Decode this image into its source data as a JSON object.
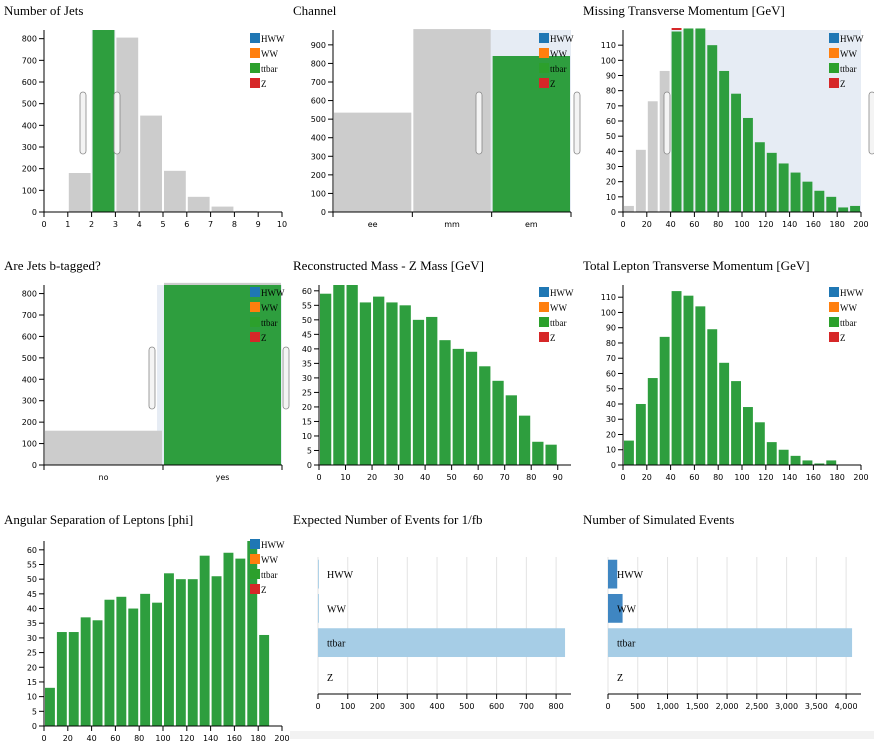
{
  "colors": {
    "HWW": "#1f77b4",
    "WW": "#ff7f0e",
    "ttbar": "#2ca02c",
    "Z": "#d62728",
    "bar": "#2e9e3e",
    "background": "#cccccc",
    "selection": "#e6ecf4",
    "hbar_light": "#a6cde6",
    "hbar_dark": "#3f86c2"
  },
  "legend": [
    "HWW",
    "WW",
    "ttbar",
    "Z"
  ],
  "chart_data": [
    {
      "id": "njets",
      "type": "bar",
      "title": "Number of Jets",
      "xlim": [
        0,
        10
      ],
      "ylim": [
        0,
        840
      ],
      "xticks": [
        0,
        1,
        2,
        3,
        4,
        5,
        6,
        7,
        8,
        9,
        10
      ],
      "yticks": [
        0,
        100,
        200,
        300,
        400,
        500,
        600,
        700,
        800
      ],
      "background": {
        "bins": [
          [
            1,
            2,
            180
          ],
          [
            2,
            3,
            840
          ],
          [
            3,
            4,
            805
          ],
          [
            4,
            5,
            445
          ],
          [
            5,
            6,
            190
          ],
          [
            6,
            7,
            70
          ],
          [
            7,
            8,
            25
          ],
          [
            8,
            9,
            5
          ]
        ]
      },
      "series": [
        {
          "name": "ttbar",
          "bins": [
            [
              2,
              3,
              840
            ]
          ]
        }
      ],
      "brush": [
        2,
        3
      ]
    },
    {
      "id": "channel",
      "type": "bar",
      "title": "Channel",
      "categories": [
        "ee",
        "mm",
        "em"
      ],
      "ylim": [
        0,
        980
      ],
      "yticks": [
        0,
        100,
        200,
        300,
        400,
        500,
        600,
        700,
        800,
        900
      ],
      "background": {
        "values": [
          535,
          985,
          840
        ]
      },
      "series": [
        {
          "name": "ttbar",
          "values": [
            0,
            0,
            840
          ]
        }
      ],
      "brush": [
        1.98,
        3
      ]
    },
    {
      "id": "met",
      "type": "bar",
      "title": "Missing Transverse Momentum [GeV]",
      "xlim": [
        0,
        200
      ],
      "ylim": [
        0,
        120
      ],
      "xticks": [
        0,
        20,
        40,
        60,
        80,
        100,
        120,
        140,
        160,
        180,
        200
      ],
      "yticks": [
        0,
        10,
        20,
        30,
        40,
        50,
        60,
        70,
        80,
        90,
        100,
        110
      ],
      "binwidth": 10,
      "background": {
        "x": [
          0,
          10,
          20,
          30
        ],
        "values": [
          4,
          41,
          73,
          93
        ]
      },
      "series": [
        {
          "name": "ttbar",
          "x": [
            40,
            50,
            60,
            70,
            80,
            90,
            100,
            110,
            120,
            130,
            140,
            150,
            160,
            170,
            180,
            190
          ],
          "values": [
            119,
            121,
            121,
            110,
            93,
            78,
            62,
            46,
            39,
            32,
            26,
            20,
            14,
            10,
            3,
            4
          ]
        }
      ],
      "extra_series": [
        {
          "name": "Z",
          "x": [
            40
          ],
          "values": [
            2
          ],
          "stack_on": 119
        }
      ],
      "brush": [
        40,
        200
      ]
    },
    {
      "id": "btag",
      "type": "bar",
      "title": "Are Jets b-tagged?",
      "categories": [
        "no",
        "yes"
      ],
      "ylim": [
        0,
        840
      ],
      "yticks": [
        0,
        100,
        200,
        300,
        400,
        500,
        600,
        700,
        800
      ],
      "background": {
        "values": [
          160,
          850
        ]
      },
      "series": [
        {
          "name": "ttbar",
          "values": [
            0,
            840
          ]
        }
      ],
      "brush": [
        0.95,
        2
      ]
    },
    {
      "id": "mll",
      "type": "bar",
      "title": "Reconstructed Mass - Z Mass [GeV]",
      "xlim": [
        0,
        95
      ],
      "ylim": [
        0,
        62
      ],
      "xticks": [
        0,
        10,
        20,
        30,
        40,
        50,
        60,
        70,
        80,
        90
      ],
      "yticks": [
        0,
        5,
        10,
        15,
        20,
        25,
        30,
        35,
        40,
        45,
        50,
        55,
        60
      ],
      "binwidth": 5,
      "series": [
        {
          "name": "ttbar",
          "x": [
            0,
            5,
            10,
            15,
            20,
            25,
            30,
            35,
            40,
            45,
            50,
            55,
            60,
            65,
            70,
            75,
            80,
            85
          ],
          "values": [
            59,
            62,
            62,
            56,
            58,
            56,
            55,
            50,
            51,
            43,
            40,
            39,
            34,
            29,
            24,
            17,
            8,
            7
          ]
        }
      ]
    },
    {
      "id": "ptll",
      "type": "bar",
      "title": "Total Lepton Transverse Momentum [GeV]",
      "xlim": [
        0,
        200
      ],
      "ylim": [
        0,
        118
      ],
      "xticks": [
        0,
        20,
        40,
        60,
        80,
        100,
        120,
        140,
        160,
        180,
        200
      ],
      "yticks": [
        0,
        10,
        20,
        30,
        40,
        50,
        60,
        70,
        80,
        90,
        100,
        110
      ],
      "binwidth": 10,
      "series": [
        {
          "name": "ttbar",
          "x": [
            0,
            10,
            20,
            30,
            40,
            50,
            60,
            70,
            80,
            90,
            100,
            110,
            120,
            130,
            140,
            150,
            160,
            170
          ],
          "values": [
            16,
            40,
            57,
            84,
            114,
            111,
            104,
            89,
            67,
            55,
            38,
            28,
            15,
            10,
            6,
            3,
            1,
            3
          ]
        }
      ]
    },
    {
      "id": "dphi",
      "type": "bar",
      "title": "Angular Separation of Leptons [phi]",
      "xlim": [
        0,
        200
      ],
      "ylim": [
        0,
        63
      ],
      "xticks": [
        0,
        20,
        40,
        60,
        80,
        100,
        120,
        140,
        160,
        180,
        200
      ],
      "yticks": [
        0,
        5,
        10,
        15,
        20,
        25,
        30,
        35,
        40,
        45,
        50,
        55,
        60
      ],
      "binwidth": 10,
      "series": [
        {
          "name": "ttbar",
          "x": [
            0,
            10,
            20,
            30,
            40,
            50,
            60,
            70,
            80,
            90,
            100,
            110,
            120,
            130,
            140,
            150,
            160,
            170,
            180
          ],
          "values": [
            13,
            32,
            32,
            37,
            36,
            43,
            44,
            40,
            45,
            42,
            52,
            50,
            50,
            58,
            51,
            59,
            57,
            63,
            31
          ]
        }
      ]
    },
    {
      "id": "expected",
      "type": "bar",
      "orientation": "horizontal",
      "title": "Expected Number of Events for 1/fb",
      "categories": [
        "HWW",
        "WW",
        "ttbar",
        "Z"
      ],
      "values": [
        3,
        3,
        830,
        0
      ],
      "xlim": [
        0,
        850
      ],
      "xticks": [
        0,
        100,
        200,
        300,
        400,
        500,
        600,
        700,
        800
      ]
    },
    {
      "id": "simulated",
      "type": "bar",
      "orientation": "horizontal",
      "title": "Number of Simulated Events",
      "categories": [
        "HWW",
        "WW",
        "ttbar",
        "Z"
      ],
      "values": [
        155,
        245,
        4100,
        0
      ],
      "xlim": [
        0,
        4250
      ],
      "xticks": [
        0,
        500,
        1000,
        1500,
        2000,
        2500,
        3000,
        3500,
        4000
      ],
      "xtick_labels": [
        "0",
        "500",
        "1,000",
        "1,500",
        "2,000",
        "2,500",
        "3,000",
        "3,500",
        "4,000"
      ]
    }
  ]
}
